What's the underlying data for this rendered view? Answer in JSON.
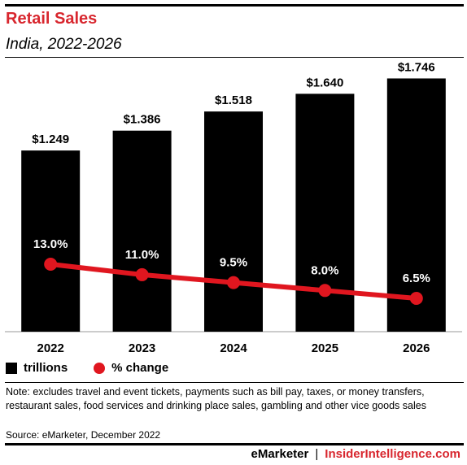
{
  "header": {
    "title": "Retail Sales",
    "subtitle": "India, 2022-2026"
  },
  "colors": {
    "accent": "#d8262e",
    "bar": "#000000",
    "line": "#e0161f"
  },
  "chart_data": {
    "type": "bar",
    "categories": [
      "2022",
      "2023",
      "2024",
      "2025",
      "2026"
    ],
    "series": [
      {
        "name": "trillions",
        "type": "bar",
        "values": [
          1.249,
          1.386,
          1.518,
          1.64,
          1.746
        ],
        "labels": [
          "$1.249",
          "$1.386",
          "$1.518",
          "$1.640",
          "$1.746"
        ]
      },
      {
        "name": "% change",
        "type": "line",
        "values": [
          13.0,
          11.0,
          9.5,
          8.0,
          6.5
        ],
        "labels": [
          "13.0%",
          "11.0%",
          "9.5%",
          "8.0%",
          "6.5%"
        ]
      }
    ],
    "ylim": [
      0,
      1.9
    ],
    "grid": false,
    "legend": "bottom-left"
  },
  "legend": {
    "bar_label": "trillions",
    "line_label": "% change"
  },
  "footnote": {
    "note": "Note: excludes travel and event tickets, payments such as bill pay, taxes, or money transfers, restaurant sales, food services and drinking place sales, gambling and other vice goods sales",
    "source": "Source: eMarketer, December 2022"
  },
  "footer": {
    "brand": "eMarketer",
    "separator": "|",
    "brand2": "InsiderIntelligence.com"
  }
}
